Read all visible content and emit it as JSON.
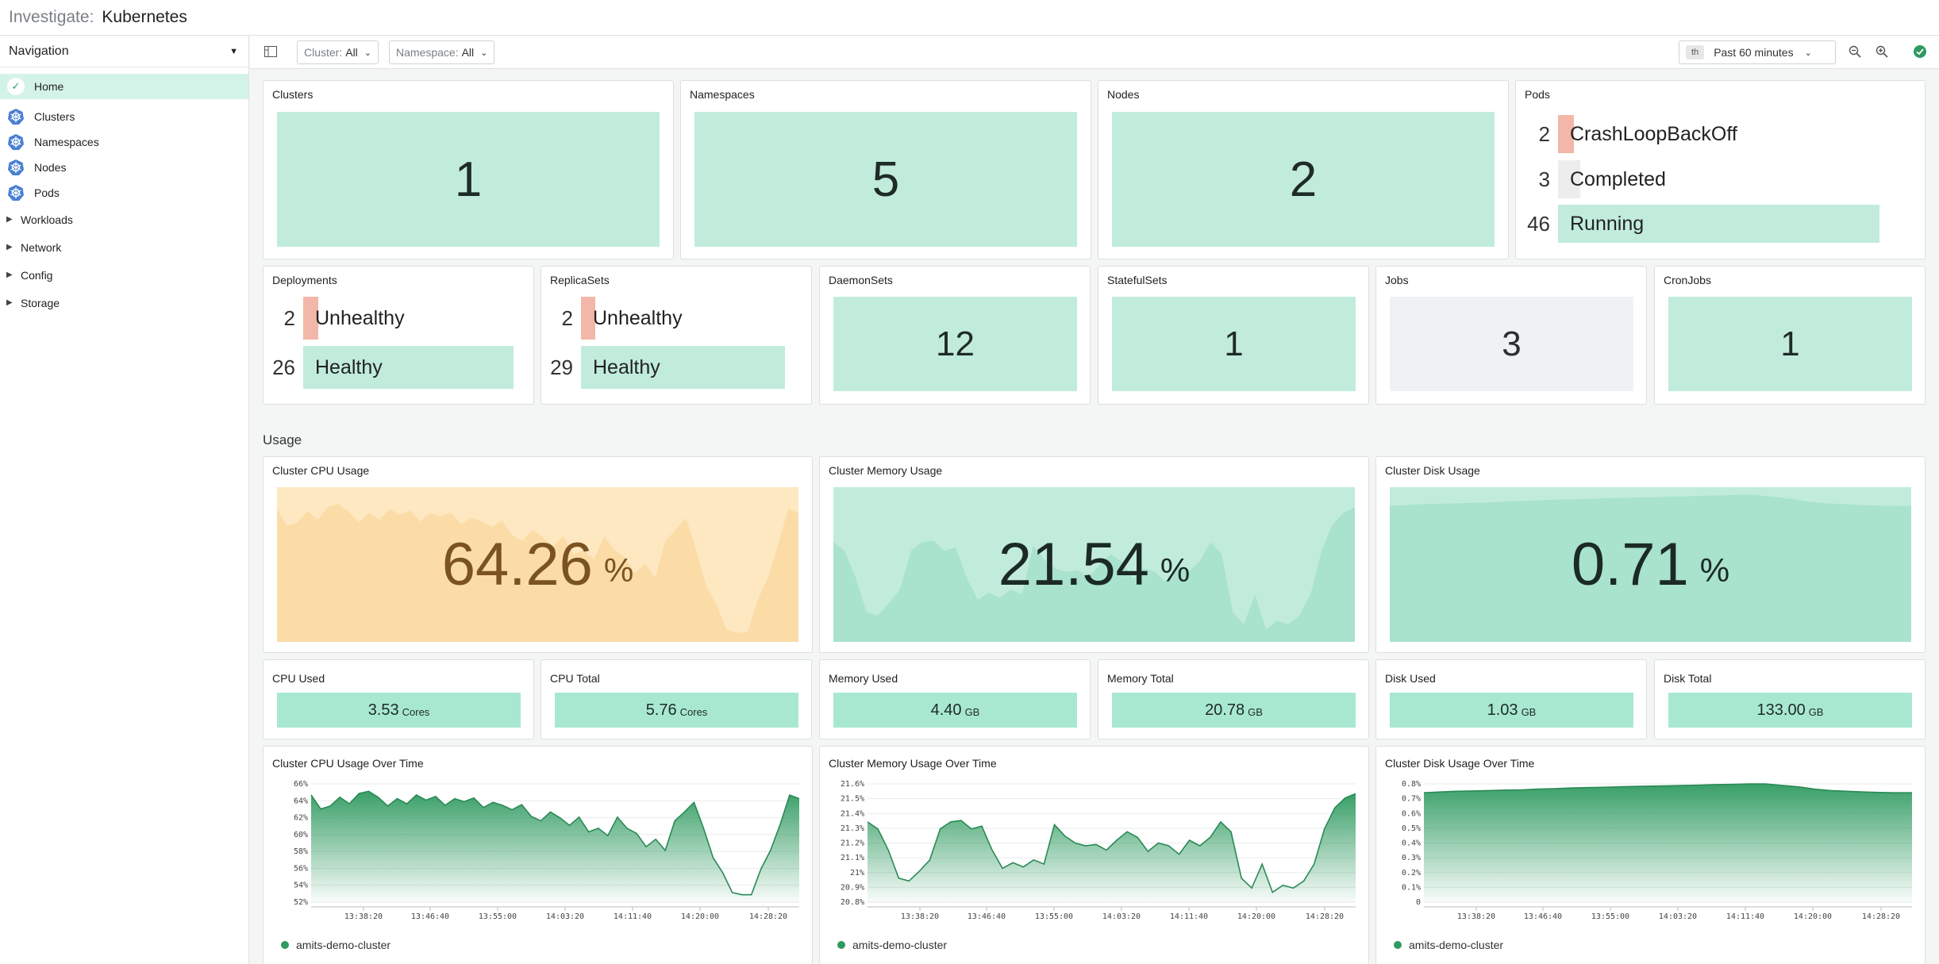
{
  "header": {
    "crumb": "Investigate:",
    "title": "Kubernetes"
  },
  "nav": {
    "title": "Navigation",
    "home": "Home",
    "k8s_items": [
      {
        "label": "Clusters"
      },
      {
        "label": "Namespaces"
      },
      {
        "label": "Nodes"
      },
      {
        "label": "Pods"
      }
    ],
    "groups": [
      {
        "label": "Workloads"
      },
      {
        "label": "Network"
      },
      {
        "label": "Config"
      },
      {
        "label": "Storage"
      }
    ]
  },
  "toolbar": {
    "cluster_label": "Cluster:",
    "cluster_value": "All",
    "namespace_label": "Namespace:",
    "namespace_value": "All",
    "time_badge": "th",
    "time_range": "Past 60 minutes"
  },
  "summary": {
    "clusters": {
      "title": "Clusters",
      "value": "1"
    },
    "namespaces": {
      "title": "Namespaces",
      "value": "5"
    },
    "nodes": {
      "title": "Nodes",
      "value": "2"
    },
    "pods": {
      "title": "Pods",
      "rows": [
        {
          "count": "2",
          "status": "CrashLoopBackOff",
          "fill": 0.05
        },
        {
          "count": "3",
          "status": "Completed",
          "fill": 0.07
        },
        {
          "count": "46",
          "status": "Running",
          "fill": 1.0
        }
      ]
    },
    "deployments": {
      "title": "Deployments",
      "rows": [
        {
          "count": "2",
          "status": "Unhealthy",
          "fill": 0.07
        },
        {
          "count": "26",
          "status": "Healthy",
          "fill": 1.0
        }
      ]
    },
    "replicasets": {
      "title": "ReplicaSets",
      "rows": [
        {
          "count": "2",
          "status": "Unhealthy",
          "fill": 0.07
        },
        {
          "count": "29",
          "status": "Healthy",
          "fill": 1.0
        }
      ]
    },
    "daemonsets": {
      "title": "DaemonSets",
      "value": "12"
    },
    "statefulsets": {
      "title": "StatefulSets",
      "value": "1"
    },
    "jobs": {
      "title": "Jobs",
      "value": "3"
    },
    "cronjobs": {
      "title": "CronJobs",
      "value": "1"
    }
  },
  "usage": {
    "section_title": "Usage",
    "cpu": {
      "title": "Cluster CPU Usage",
      "value": "64.26",
      "unit": "%"
    },
    "memory": {
      "title": "Cluster Memory Usage",
      "value": "21.54",
      "unit": "%"
    },
    "disk": {
      "title": "Cluster Disk Usage",
      "value": "0.71",
      "unit": "%"
    },
    "stats": [
      {
        "title": "CPU Used",
        "value": "3.53",
        "unit": "Cores"
      },
      {
        "title": "CPU Total",
        "value": "5.76",
        "unit": "Cores"
      },
      {
        "title": "Memory Used",
        "value": "4.40",
        "unit": "GB"
      },
      {
        "title": "Memory Total",
        "value": "20.78",
        "unit": "GB"
      },
      {
        "title": "Disk Used",
        "value": "1.03",
        "unit": "GB"
      },
      {
        "title": "Disk Total",
        "value": "133.00",
        "unit": "GB"
      }
    ]
  },
  "colors": {
    "accent": "#2f9a60",
    "tile": "#c1ecdc",
    "warn": "#fde5b8",
    "error": "#f2b7a8"
  },
  "chart_data": [
    {
      "type": "area",
      "title": "Cluster CPU Usage Over Time",
      "x_ticks": [
        "13:38:20",
        "13:46:40",
        "13:55:00",
        "14:03:20",
        "14:11:40",
        "14:20:00",
        "14:28:20"
      ],
      "y_ticks": [
        "66%",
        "64%",
        "62%",
        "60%",
        "58%",
        "56%",
        "54%",
        "52%"
      ],
      "ylim": [
        51,
        67
      ],
      "series": [
        {
          "name": "amits-demo-cluster",
          "values": [
            65.5,
            63.6,
            64.0,
            65.2,
            64.3,
            65.7,
            66.0,
            65.2,
            64.0,
            65.0,
            64.3,
            65.5,
            64.8,
            65.3,
            64.1,
            65.0,
            64.6,
            65.1,
            63.8,
            64.5,
            64.1,
            63.5,
            64.2,
            62.6,
            62.0,
            63.2,
            62.4,
            61.4,
            62.5,
            60.5,
            61.0,
            60.0,
            62.5,
            61.0,
            60.3,
            58.5,
            59.5,
            58.0,
            62.0,
            63.2,
            64.5,
            61.0,
            57.0,
            55.0,
            52.3,
            52.0,
            52.0,
            55.5,
            58.0,
            61.5,
            65.5,
            65.0
          ]
        }
      ]
    },
    {
      "type": "area",
      "title": "Cluster Memory Usage Over Time",
      "x_ticks": [
        "13:38:20",
        "13:46:40",
        "13:55:00",
        "14:03:20",
        "14:11:40",
        "14:20:00",
        "14:28:20"
      ],
      "y_ticks": [
        "21.6%",
        "21.5%",
        "21.4%",
        "21.3%",
        "21.2%",
        "21.1%",
        "21%",
        "20.9%",
        "20.8%"
      ],
      "ylim": [
        20.78,
        21.62
      ],
      "series": [
        {
          "name": "amits-demo-cluster",
          "values": [
            21.35,
            21.3,
            21.15,
            20.95,
            20.93,
            21.0,
            21.08,
            21.3,
            21.35,
            21.36,
            21.3,
            21.32,
            21.15,
            21.02,
            21.06,
            21.03,
            21.08,
            21.05,
            21.33,
            21.25,
            21.2,
            21.18,
            21.19,
            21.15,
            21.22,
            21.28,
            21.24,
            21.14,
            21.2,
            21.18,
            21.12,
            21.22,
            21.18,
            21.24,
            21.35,
            21.28,
            20.95,
            20.88,
            21.05,
            20.85,
            20.9,
            20.88,
            20.93,
            21.05,
            21.3,
            21.45,
            21.52,
            21.55
          ]
        }
      ]
    },
    {
      "type": "area",
      "title": "Cluster Disk Usage Over Time",
      "x_ticks": [
        "13:38:20",
        "13:46:40",
        "13:55:00",
        "14:03:20",
        "14:11:40",
        "14:20:00",
        "14:28:20"
      ],
      "y_ticks": [
        "0.8%",
        "0.7%",
        "0.6%",
        "0.5%",
        "0.4%",
        "0.3%",
        "0.2%",
        "0.1%",
        "0"
      ],
      "ylim": [
        0,
        0.8
      ],
      "series": [
        {
          "name": "amits-demo-cluster",
          "values": [
            0.74,
            0.745,
            0.75,
            0.752,
            0.755,
            0.758,
            0.76,
            0.765,
            0.768,
            0.772,
            0.775,
            0.777,
            0.78,
            0.783,
            0.785,
            0.787,
            0.79,
            0.792,
            0.795,
            0.797,
            0.8,
            0.8,
            0.79,
            0.78,
            0.765,
            0.755,
            0.75,
            0.745,
            0.742,
            0.74,
            0.74
          ]
        }
      ]
    }
  ]
}
